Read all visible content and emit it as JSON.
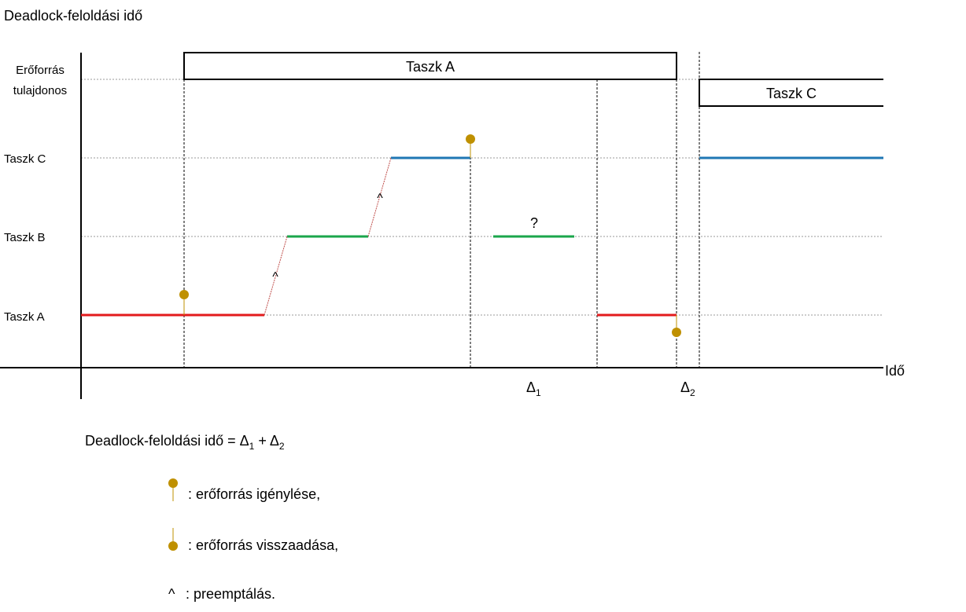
{
  "title": "Deadlock-feloldási idő",
  "y_axis_label_line1": "Erőforrás",
  "y_axis_label_line2": "tulajdonos",
  "rows": {
    "task_c": "Taszk C",
    "task_b": "Taszk B",
    "task_a": "Taszk A"
  },
  "x_axis_label": "Idő",
  "owner_bars": {
    "first": "Taszk A",
    "second": "Taszk C"
  },
  "question_mark": "?",
  "preempt_mark": "^",
  "delta_symbol": "Δ",
  "delta1_sub": "1",
  "delta2_sub": "2",
  "formula": {
    "prefix": "Deadlock-feloldási idő = ",
    "delta": "Δ",
    "sub1": "1",
    "plus": " + ",
    "sub2": "2"
  },
  "legend": {
    "request": ": erőforrás igénylése,",
    "release": ": erőforrás visszaadása,",
    "preempt_symbol": "^",
    "preempt": ": preemptálás."
  },
  "colors": {
    "task_a": "#e31a1c",
    "task_b": "#1aa64b",
    "task_c": "#1f77b4",
    "marker": "#bf9000",
    "preempt_line": "#c0504d"
  }
}
